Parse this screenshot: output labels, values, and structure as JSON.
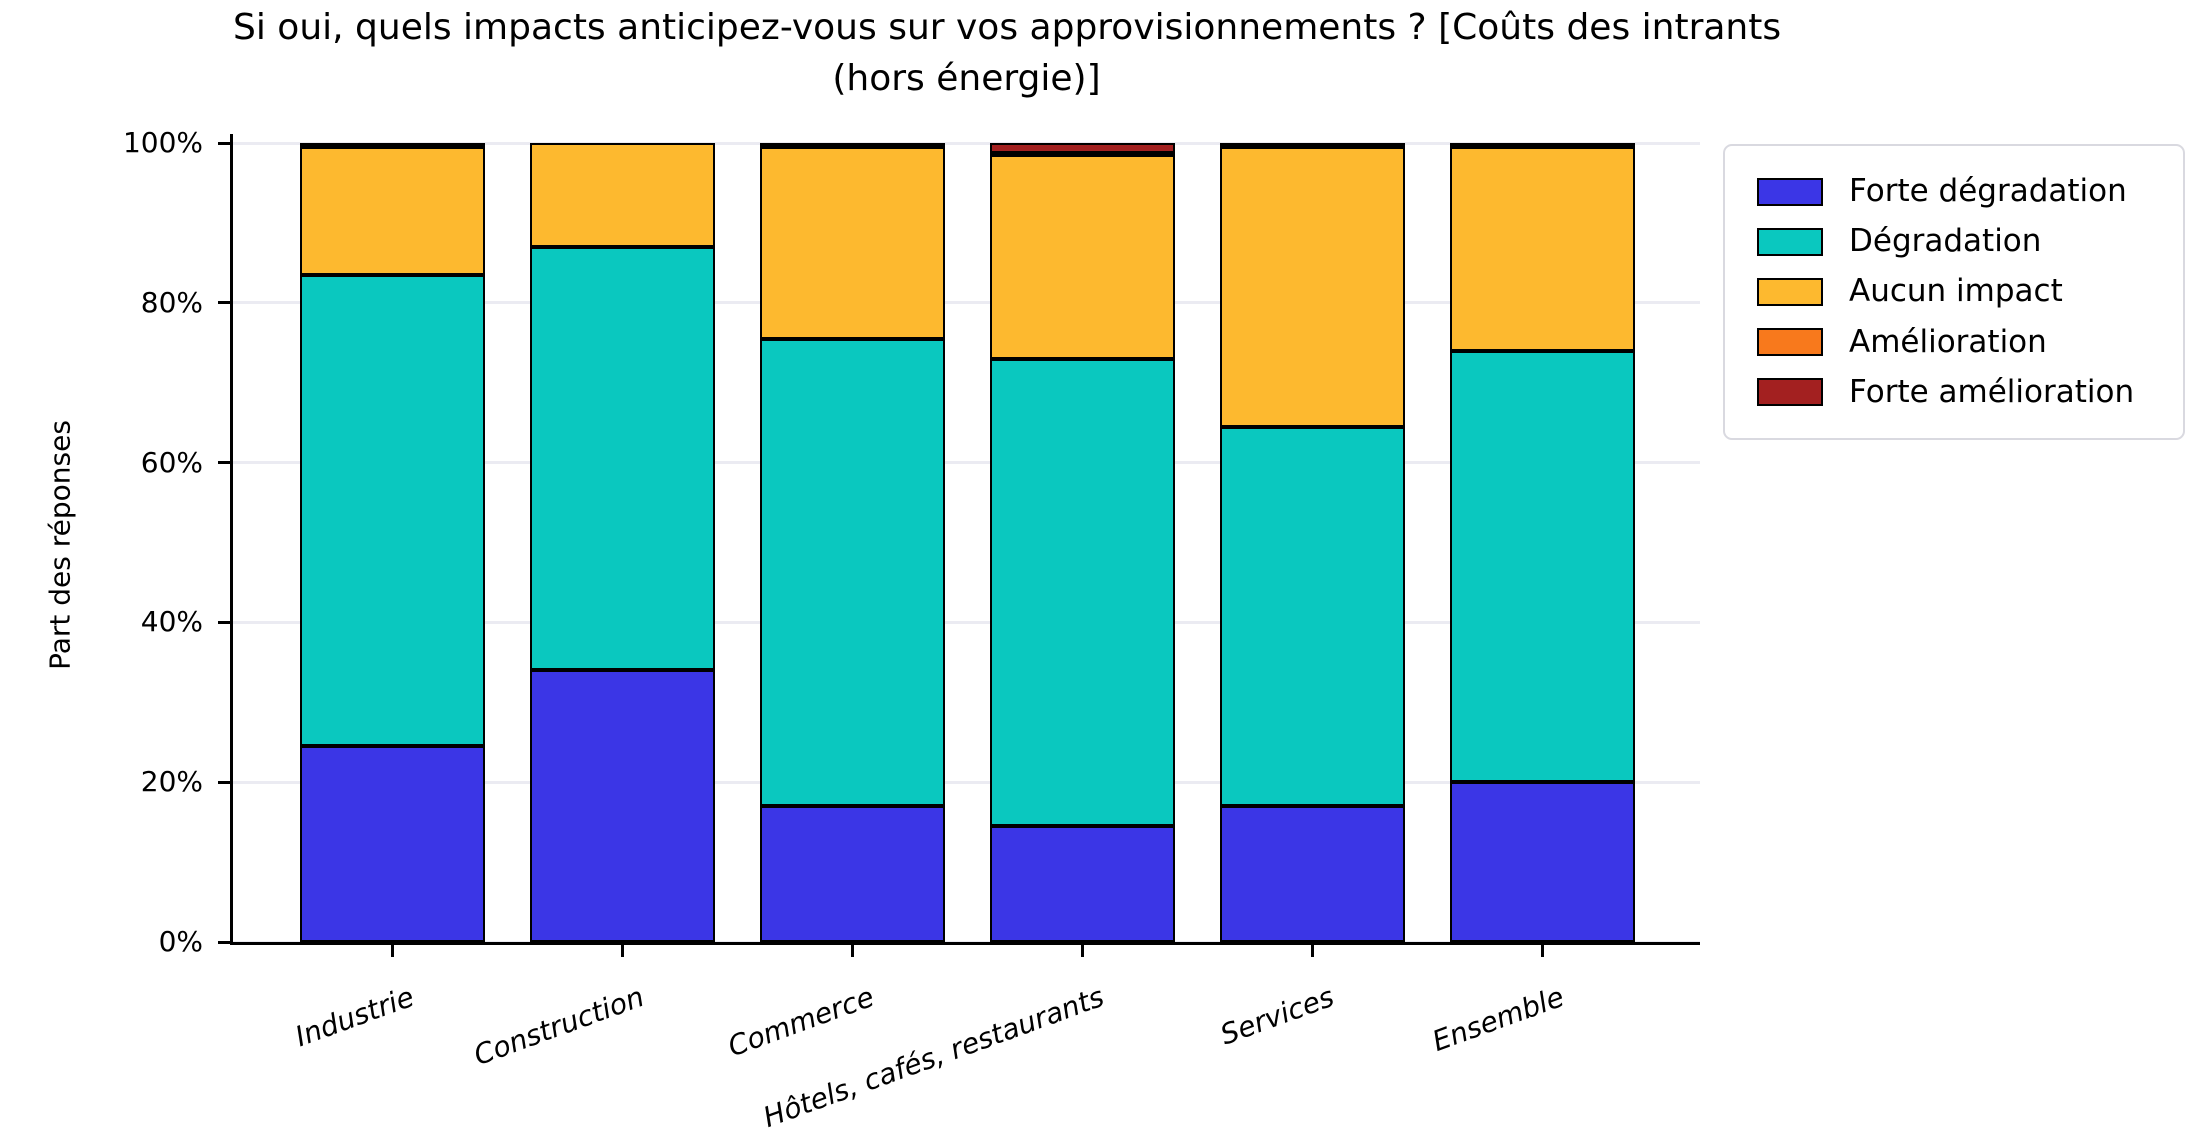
{
  "title": {
    "line1": "Si oui, quels impacts anticipez-vous sur vos approvisionnements ?  [Coûts des intrants",
    "line2": "(hors énergie)]"
  },
  "chart_data": {
    "type": "bar",
    "stacked": true,
    "title": "Si oui, quels impacts anticipez-vous sur vos approvisionnements ?  [Coûts des intrants (hors énergie)]",
    "ylabel": "Part des réponses",
    "xlabel": "",
    "ylim": [
      0,
      100
    ],
    "grid": true,
    "legend_position": "upper right",
    "categories": [
      "Industrie",
      "Construction",
      "Commerce",
      "Hôtels, cafés, restaurants",
      "Services",
      "Ensemble"
    ],
    "ytick_values": [
      0,
      20,
      40,
      60,
      80,
      100
    ],
    "ytick_labels": [
      "0%",
      "20%",
      "40%",
      "60%",
      "80%",
      "100%"
    ],
    "series": [
      {
        "name": "Forte dégradation",
        "color": "#3B36E6",
        "values": [
          24.5,
          34.0,
          17.0,
          14.5,
          17.0,
          20.0
        ]
      },
      {
        "name": "Dégradation",
        "color": "#0AC8BF",
        "values": [
          59.0,
          53.0,
          58.5,
          58.5,
          47.5,
          54.0
        ]
      },
      {
        "name": "Aucun impact",
        "color": "#FDB92F",
        "values": [
          16.0,
          13.0,
          24.0,
          25.5,
          35.0,
          25.5
        ]
      },
      {
        "name": "Amélioration",
        "color": "#F8791C",
        "values": [
          0.0,
          0.0,
          0.0,
          0.2,
          0.0,
          0.0
        ]
      },
      {
        "name": "Forte amélioration",
        "color": "#A32020",
        "values": [
          0.5,
          0.0,
          0.5,
          1.3,
          0.5,
          0.5
        ]
      }
    ]
  }
}
